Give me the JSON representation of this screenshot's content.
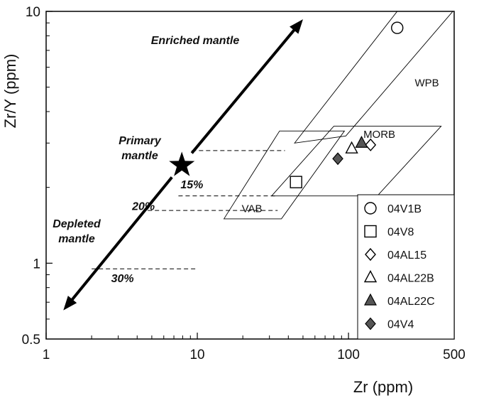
{
  "chart_data": {
    "type": "scatter",
    "x_scale": "log",
    "y_scale": "log",
    "xlabel": "Zr (ppm)",
    "ylabel": "Zr/Y (ppm)",
    "xlim": [
      1,
      500
    ],
    "ylim": [
      0.5,
      10
    ],
    "x_ticks": [
      "1",
      "10",
      "100",
      "500"
    ],
    "y_ticks": [
      "0.5",
      "1",
      "10"
    ],
    "grid": false,
    "legend_position": "bottom-right",
    "series": [
      {
        "name": "04V1B",
        "marker": "circle-open",
        "points": [
          [
            210,
            8.6
          ]
        ]
      },
      {
        "name": "04V8",
        "marker": "square-open",
        "points": [
          [
            45,
            2.1
          ]
        ]
      },
      {
        "name": "04AL15",
        "marker": "diamond-open",
        "points": [
          [
            140,
            2.95
          ]
        ]
      },
      {
        "name": "04AL22B",
        "marker": "triangle-open",
        "points": [
          [
            105,
            2.85
          ]
        ]
      },
      {
        "name": "04AL22C",
        "marker": "triangle-filled",
        "points": [
          [
            122,
            3.0
          ]
        ]
      },
      {
        "name": "04V4",
        "marker": "diamond-filled",
        "points": [
          [
            85,
            2.6
          ]
        ]
      }
    ],
    "fields": [
      {
        "label": "WPB",
        "polygon": [
          [
            44,
            3.0
          ],
          [
            210,
            11.0
          ],
          [
            490,
            11.0
          ],
          [
            96,
            3.2
          ]
        ]
      },
      {
        "label": "MORB",
        "polygon": [
          [
            31,
            1.85
          ],
          [
            80,
            3.5
          ],
          [
            410,
            3.5
          ],
          [
            155,
            1.85
          ]
        ]
      },
      {
        "label": "VAB",
        "polygon": [
          [
            15,
            1.5
          ],
          [
            35,
            3.35
          ],
          [
            94,
            3.35
          ],
          [
            36,
            1.5
          ]
        ]
      }
    ],
    "mantle_trend": {
      "start": [
        1.3,
        0.65
      ],
      "end": [
        50,
        9.3
      ],
      "primary_mantle": [
        7.9,
        2.45
      ],
      "labels": [
        "Enriched mantle",
        "Primary mantle",
        "Depleted mantle"
      ]
    },
    "melting_curves": [
      {
        "label": "15%",
        "label_at": [
          9.2,
          2.05
        ],
        "line": [
          [
            7.5,
            1.85
          ],
          [
            34,
            1.85
          ]
        ]
      },
      {
        "label": "20%",
        "label_at": [
          4.4,
          1.68
        ],
        "line": [
          [
            4.7,
            1.62
          ],
          [
            34,
            1.62
          ]
        ]
      },
      {
        "label": "30%",
        "label_at": [
          3.2,
          0.87
        ],
        "line": [
          [
            2.0,
            0.95
          ],
          [
            10,
            0.95
          ]
        ]
      }
    ],
    "fraction_tie_line": {
      "line": [
        [
          9.2,
          2.8
        ],
        [
          38,
          2.8
        ]
      ]
    }
  },
  "legend": {
    "items": [
      {
        "name": "04V1B",
        "marker": "circle-open"
      },
      {
        "name": "04V8",
        "marker": "square-open"
      },
      {
        "name": "04AL15",
        "marker": "diamond-open"
      },
      {
        "name": "04AL22B",
        "marker": "triangle-open"
      },
      {
        "name": "04AL22C",
        "marker": "triangle-filled"
      },
      {
        "name": "04V4",
        "marker": "diamond-filled"
      }
    ]
  },
  "colors": {
    "axis": "#000000",
    "marker_fill_dark": "#555555",
    "marker_fill_open": "#ffffff",
    "line": "#000000"
  }
}
